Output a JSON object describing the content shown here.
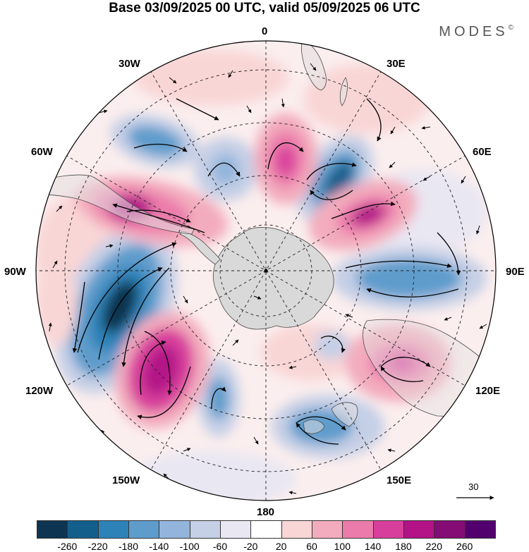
{
  "title": "Base 03/09/2025 00 UTC, valid 05/09/2025 06 UTC",
  "brand": "MODES",
  "brand_mark": "©",
  "meridian_labels": {
    "lon_0": "0",
    "lon_30e": "30E",
    "lon_60e": "60E",
    "lon_90e": "90E",
    "lon_120e": "120E",
    "lon_150e": "150E",
    "lon_180": "180",
    "lon_150w": "150W",
    "lon_120w": "120W",
    "lon_90w": "90W",
    "lon_60w": "60W",
    "lon_30w": "30W"
  },
  "reference_vector": "30",
  "legend": {
    "ticks": [
      "-260",
      "-220",
      "-180",
      "-140",
      "-100",
      "-60",
      "-20",
      "20",
      "60",
      "100",
      "140",
      "180",
      "220",
      "260"
    ],
    "colors": [
      "#0d3450",
      "#135f8c",
      "#2d82b8",
      "#5e9ccc",
      "#93b5dc",
      "#c5cfe6",
      "#e9e7f2",
      "#ffffff",
      "#f9d6d6",
      "#f3acbd",
      "#eb7bab",
      "#d83f9c",
      "#b41387",
      "#840c74",
      "#52006d"
    ]
  },
  "colors": {
    "land": "#d9d9d9",
    "coast": "#4a4a4a",
    "grid": "#222222"
  }
}
